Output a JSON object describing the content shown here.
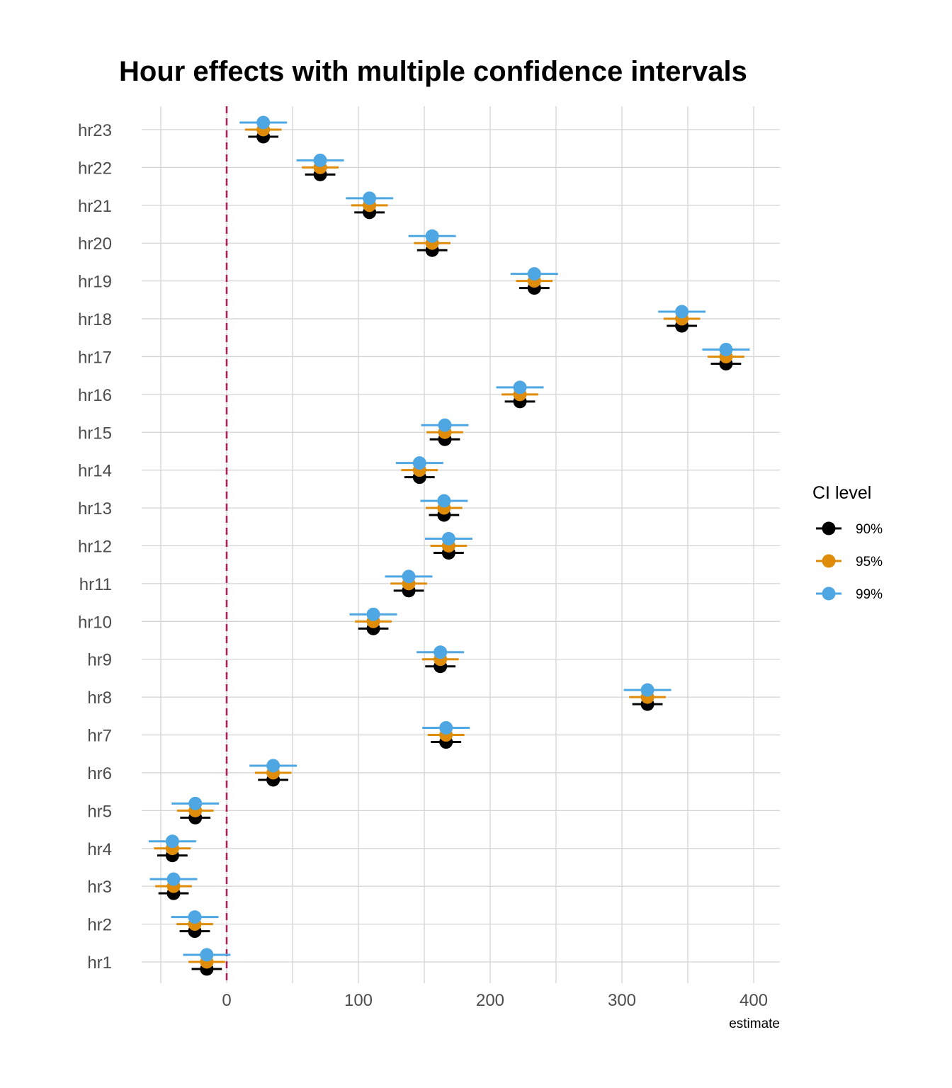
{
  "chart_data": {
    "type": "scatter",
    "subtype": "forest-plot-with-error-bars",
    "title": "Hour effects with multiple confidence intervals",
    "xlabel": "estimate",
    "ylabel": "",
    "xlim": [
      -75,
      420
    ],
    "x_ticks": [
      0,
      100,
      200,
      300,
      400
    ],
    "x_minor_gridlines": [
      -50,
      50,
      150,
      250,
      350
    ],
    "grid": true,
    "reference_line": {
      "x": 0,
      "style": "dashed",
      "color": "#b0205a"
    },
    "categories": [
      "hr1",
      "hr2",
      "hr3",
      "hr4",
      "hr5",
      "hr6",
      "hr7",
      "hr8",
      "hr9",
      "hr10",
      "hr11",
      "hr12",
      "hr13",
      "hr14",
      "hr15",
      "hr16",
      "hr17",
      "hr18",
      "hr19",
      "hr20",
      "hr21",
      "hr22",
      "hr23"
    ],
    "estimates": [
      -15.1,
      -24.2,
      -40.3,
      -41.2,
      -23.8,
      35.3,
      166.5,
      319.4,
      162.2,
      111.3,
      138.2,
      168.5,
      165.0,
      146.4,
      165.6,
      222.6,
      379.0,
      345.5,
      233.5,
      156.0,
      108.4,
      71.0,
      27.8
    ],
    "half_widths": {
      "90%": 11.5,
      "95%": 13.9,
      "99%": 18.0
    },
    "legend": {
      "title": "CI level",
      "position": "right",
      "entries": [
        {
          "label": "90%",
          "color": "#000000"
        },
        {
          "label": "95%",
          "color": "#df8c0a"
        },
        {
          "label": "99%",
          "color": "#4ea7e3"
        }
      ]
    }
  }
}
